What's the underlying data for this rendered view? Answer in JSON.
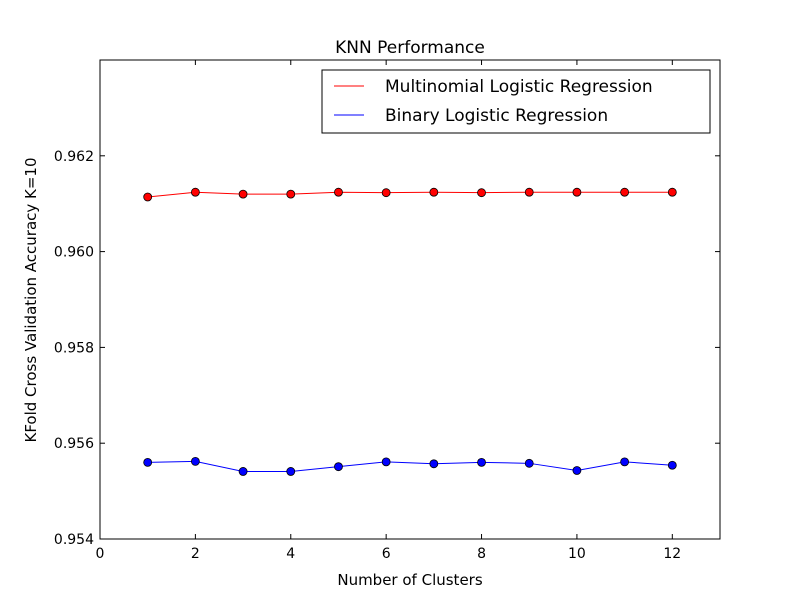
{
  "chart_data": {
    "type": "line",
    "title": "KNN Performance",
    "xlabel": "Number of Clusters",
    "ylabel": "KFold Cross Validation Accuracy K=10",
    "xlim": [
      0,
      13
    ],
    "ylim": [
      0.954,
      0.964
    ],
    "xticks": [
      0,
      2,
      4,
      6,
      8,
      10,
      12
    ],
    "xtick_labels": [
      "0",
      "2",
      "4",
      "6",
      "8",
      "10",
      "12"
    ],
    "yticks": [
      0.954,
      0.956,
      0.958,
      0.96,
      0.962
    ],
    "ytick_labels": [
      "0.954",
      "0.956",
      "0.958",
      "0.960",
      "0.962"
    ],
    "grid": false,
    "legend_position": "top-right",
    "x": [
      1,
      2,
      3,
      4,
      5,
      6,
      7,
      8,
      9,
      10,
      11,
      12
    ],
    "series": [
      {
        "name": "Multinomial Logistic Regression",
        "color": "#ff0000",
        "values": [
          0.96114,
          0.96124,
          0.9612,
          0.9612,
          0.96124,
          0.96123,
          0.96124,
          0.96123,
          0.96124,
          0.96124,
          0.96124,
          0.96124
        ]
      },
      {
        "name": "Binary Logistic Regression",
        "color": "#0000ff",
        "values": [
          0.9556,
          0.95562,
          0.95541,
          0.95541,
          0.95551,
          0.95561,
          0.95557,
          0.9556,
          0.95558,
          0.95543,
          0.95561,
          0.95554
        ]
      }
    ]
  }
}
